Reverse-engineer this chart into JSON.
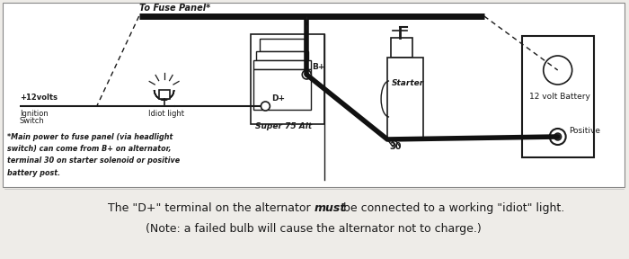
{
  "bg_color": "#eeece8",
  "diagram_bg": "#ffffff",
  "line_color": "#1a1a1a",
  "thick_line_color": "#111111",
  "fuse_label": "To Fuse Panel*",
  "volt_label": "+12volts",
  "ign_label1": "Ignition",
  "ign_label2": "Switch",
  "idiot_label": "Idiot light",
  "alt_label": "Super 75 Alt",
  "starter_label": "Starter",
  "battery_label": "12 volt Battery",
  "positive_label": "Positive",
  "dp_label": "D+",
  "bp_label": "B+",
  "thirty_label": "30",
  "footnote": "*Main power to fuse panel (via headlight\nswitch) can come from B+ on alternator,\nterminal 30 on starter solenoid or positive\nbattery post.",
  "caption_pre": "The \"D+\" terminal on the alternator ",
  "caption_bold": "must",
  "caption_post": " be connected to a working \"idiot\" light.",
  "caption_line2": "(Note: a failed bulb will cause the alternator not to charge.)"
}
